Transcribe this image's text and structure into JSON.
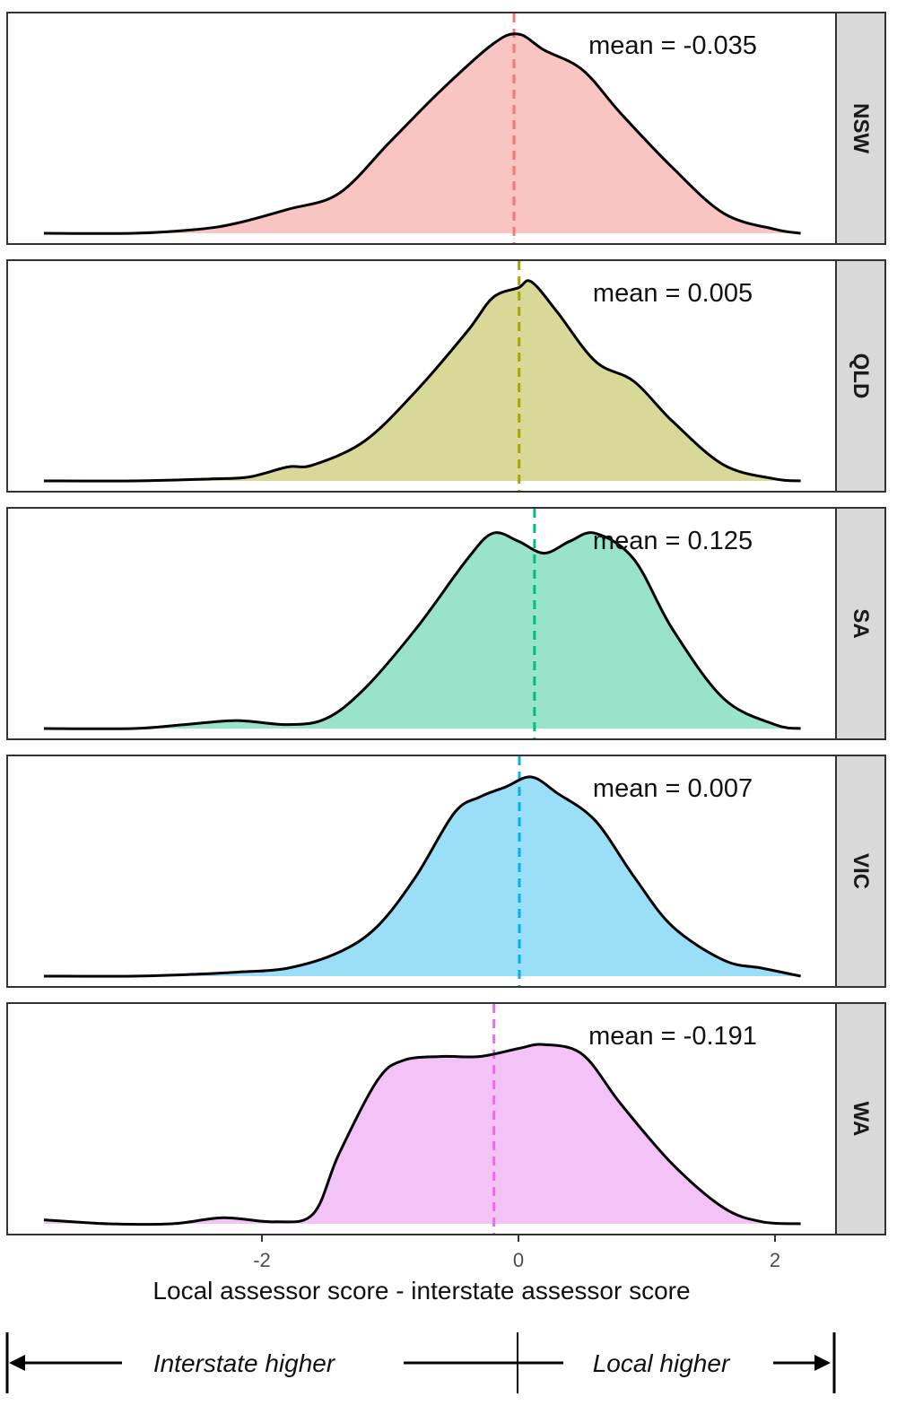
{
  "chart_data": {
    "type": "area",
    "xlabel": "Local assessor score - interstate assessor score",
    "ylabel": "",
    "xlim": [
      -3.7,
      2.2
    ],
    "x_ticks": [
      -2,
      0,
      2
    ],
    "x_tick_labels": [
      "-2",
      "0",
      "2"
    ],
    "mean_prefix": "mean = ",
    "panels": [
      {
        "name": "NSW",
        "color": "#F8766D",
        "fill": "#F9C5C2",
        "mean": -0.035,
        "mean_label": "-0.035",
        "density": [
          [
            -3.7,
            0.0
          ],
          [
            -3.0,
            0.0
          ],
          [
            -2.5,
            0.02
          ],
          [
            -2.2,
            0.05
          ],
          [
            -1.8,
            0.12
          ],
          [
            -1.4,
            0.2
          ],
          [
            -1.0,
            0.46
          ],
          [
            -0.6,
            0.72
          ],
          [
            -0.2,
            0.95
          ],
          [
            0.0,
            1.0
          ],
          [
            0.2,
            0.92
          ],
          [
            0.5,
            0.82
          ],
          [
            0.8,
            0.6
          ],
          [
            1.2,
            0.33
          ],
          [
            1.6,
            0.1
          ],
          [
            2.0,
            0.02
          ],
          [
            2.2,
            0.0
          ]
        ]
      },
      {
        "name": "QLD",
        "color": "#A3A500",
        "fill": "#D8D898",
        "mean": 0.005,
        "mean_label": "0.005",
        "density": [
          [
            -3.7,
            0.0
          ],
          [
            -3.0,
            0.0
          ],
          [
            -2.4,
            0.01
          ],
          [
            -2.1,
            0.02
          ],
          [
            -1.8,
            0.07
          ],
          [
            -1.6,
            0.08
          ],
          [
            -1.2,
            0.2
          ],
          [
            -0.8,
            0.45
          ],
          [
            -0.4,
            0.75
          ],
          [
            -0.2,
            0.92
          ],
          [
            0.0,
            0.97
          ],
          [
            0.1,
            1.0
          ],
          [
            0.3,
            0.85
          ],
          [
            0.6,
            0.6
          ],
          [
            0.9,
            0.5
          ],
          [
            1.2,
            0.3
          ],
          [
            1.6,
            0.08
          ],
          [
            2.0,
            0.01
          ],
          [
            2.2,
            0.0
          ]
        ]
      },
      {
        "name": "SA",
        "color": "#00BF7D",
        "fill": "#98E3CA",
        "mean": 0.125,
        "mean_label": "0.125",
        "density": [
          [
            -3.7,
            0.0
          ],
          [
            -3.0,
            0.0
          ],
          [
            -2.6,
            0.02
          ],
          [
            -2.2,
            0.04
          ],
          [
            -1.8,
            0.02
          ],
          [
            -1.5,
            0.05
          ],
          [
            -1.2,
            0.2
          ],
          [
            -0.8,
            0.5
          ],
          [
            -0.4,
            0.85
          ],
          [
            -0.2,
            0.98
          ],
          [
            0.0,
            0.94
          ],
          [
            0.2,
            0.88
          ],
          [
            0.4,
            0.94
          ],
          [
            0.6,
            0.98
          ],
          [
            0.9,
            0.85
          ],
          [
            1.2,
            0.5
          ],
          [
            1.6,
            0.15
          ],
          [
            2.0,
            0.02
          ],
          [
            2.2,
            0.0
          ]
        ]
      },
      {
        "name": "VIC",
        "color": "#00B0F6",
        "fill": "#9BDEF8",
        "mean": 0.007,
        "mean_label": "0.007",
        "density": [
          [
            -3.7,
            0.0
          ],
          [
            -3.0,
            0.0
          ],
          [
            -2.5,
            0.01
          ],
          [
            -2.2,
            0.02
          ],
          [
            -1.8,
            0.04
          ],
          [
            -1.4,
            0.12
          ],
          [
            -1.1,
            0.25
          ],
          [
            -0.8,
            0.5
          ],
          [
            -0.5,
            0.82
          ],
          [
            -0.3,
            0.9
          ],
          [
            -0.1,
            0.95
          ],
          [
            0.1,
            1.0
          ],
          [
            0.3,
            0.92
          ],
          [
            0.6,
            0.78
          ],
          [
            0.9,
            0.5
          ],
          [
            1.2,
            0.25
          ],
          [
            1.6,
            0.08
          ],
          [
            1.9,
            0.04
          ],
          [
            2.2,
            0.0
          ]
        ]
      },
      {
        "name": "WA",
        "color": "#E76BF3",
        "fill": "#F3C3F7",
        "mean": -0.191,
        "mean_label": "-0.191",
        "density": [
          [
            -3.7,
            0.02
          ],
          [
            -3.2,
            0.0
          ],
          [
            -2.7,
            0.0
          ],
          [
            -2.3,
            0.03
          ],
          [
            -1.9,
            0.01
          ],
          [
            -1.6,
            0.05
          ],
          [
            -1.4,
            0.35
          ],
          [
            -1.1,
            0.72
          ],
          [
            -0.9,
            0.82
          ],
          [
            -0.6,
            0.84
          ],
          [
            -0.3,
            0.84
          ],
          [
            0.0,
            0.88
          ],
          [
            0.2,
            0.9
          ],
          [
            0.5,
            0.85
          ],
          [
            0.8,
            0.6
          ],
          [
            1.2,
            0.3
          ],
          [
            1.6,
            0.08
          ],
          [
            1.9,
            0.01
          ],
          [
            2.2,
            0.0
          ]
        ]
      }
    ]
  },
  "direction_labels": {
    "left": "Interstate higher",
    "right": "Local higher"
  }
}
